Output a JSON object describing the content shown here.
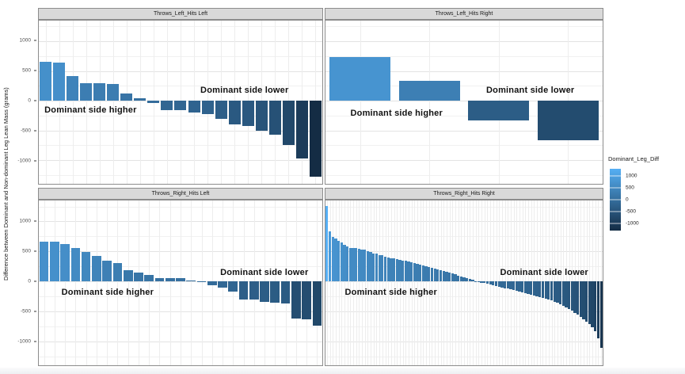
{
  "figure": {
    "ylabel": "Difference between Dominant and Non-dominant Leg Lean Mass (grams)",
    "y_ticks": [
      1000,
      500,
      0,
      -500,
      -1000
    ]
  },
  "annotations": {
    "higher": "Dominant side higher",
    "lower": "Dominant side lower"
  },
  "legend": {
    "title": "Dominant_Leg_Diff",
    "tick_values": [
      1000,
      500,
      0,
      -500,
      -1000
    ],
    "bar_domain": [
      -1282,
      1282
    ],
    "color_high": "#56B1F7",
    "color_low": "#132B43"
  },
  "chart_data": {
    "type": "bar",
    "title": "",
    "xlabel": "",
    "ylabel": "Difference between Dominant and Non-dominant Leg Lean Mass (grams)",
    "ylim": [
      -1400,
      1350
    ],
    "grid": true,
    "legend_position": "right",
    "color_domain": [
      -1300,
      1300
    ],
    "facets": [
      {
        "title": "Throws_Left_Hits Left",
        "values": [
          650,
          648,
          415,
          300,
          290,
          288,
          125,
          40,
          -35,
          -152,
          -155,
          -205,
          -230,
          -305,
          -400,
          -425,
          -500,
          -568,
          -740,
          -970,
          -1280
        ]
      },
      {
        "title": "Throws_Left_Hits Right",
        "values": [
          730,
          335,
          -335,
          -660
        ]
      },
      {
        "title": "Throws_Right_Hits Left",
        "values": [
          660,
          658,
          628,
          553,
          495,
          420,
          350,
          307,
          188,
          145,
          113,
          57,
          53,
          48,
          15,
          -8,
          -60,
          -110,
          -175,
          -305,
          -307,
          -338,
          -358,
          -372,
          -620,
          -635,
          -745
        ]
      },
      {
        "title": "Throws_Right_Hits Right",
        "values": [
          1260,
          830,
          745,
          720,
          680,
          650,
          615,
          585,
          562,
          558,
          554,
          550,
          535,
          528,
          500,
          494,
          470,
          464,
          440,
          436,
          415,
          400,
          390,
          380,
          370,
          360,
          350,
          340,
          330,
          318,
          306,
          294,
          282,
          270,
          256,
          242,
          228,
          214,
          200,
          186,
          172,
          158,
          144,
          130,
          115,
          100,
          85,
          70,
          55,
          40,
          25,
          -5,
          -12,
          -20,
          -30,
          -40,
          -52,
          -64,
          -76,
          -88,
          -100,
          -112,
          -124,
          -136,
          -148,
          -160,
          -172,
          -184,
          -196,
          -208,
          -220,
          -234,
          -248,
          -262,
          -276,
          -290,
          -306,
          -322,
          -340,
          -360,
          -382,
          -406,
          -432,
          -460,
          -490,
          -522,
          -556,
          -592,
          -630,
          -670,
          -714,
          -760,
          -830,
          -950,
          -1110
        ]
      }
    ]
  }
}
